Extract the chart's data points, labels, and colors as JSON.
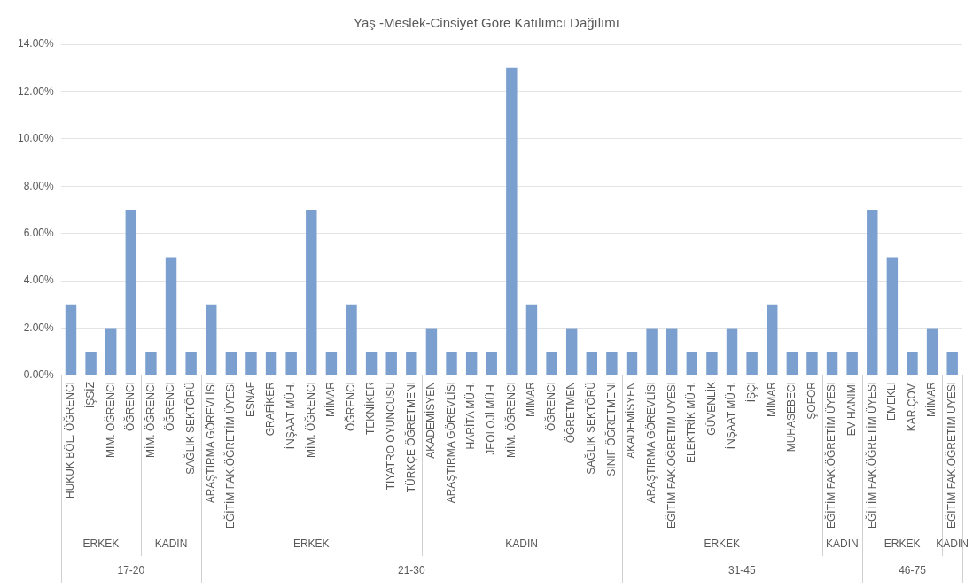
{
  "chart_data": {
    "type": "bar",
    "title": "Yaş -Meslek-Cinsiyet Göre Katılımcı Dağılımı",
    "categories": [
      "HUKUK BÖL. ÖĞRENCİ",
      "İŞSİZ",
      "MİM. ÖĞRENCİ",
      "ÖĞRENCİ",
      "MİM. ÖĞRENCİ",
      "ÖĞRENCİ",
      "SAĞLIK SEKTÖRÜ",
      "ARAŞTIRMA GÖREVLİSİ",
      "EĞİTİM FAK.ÖĞRETİM ÜYESİ",
      "ESNAF",
      "GRAFİKER",
      "İNŞAAT MÜH.",
      "MİM. ÖĞRENCİ",
      "MİMAR",
      "ÖĞRENCİ",
      "TEKNİKER",
      "TİYATRO OYUNCUSU",
      "TÜRKÇE ÖĞRETMENİ",
      "AKADEMİSYEN",
      "ARAŞTIRMA GÖREVLİSİ",
      "HARİTA MÜH.",
      "JEOLOJİ MÜH.",
      "MİM. ÖĞRENCİ",
      "MİMAR",
      "ÖĞRENCİ",
      "ÖĞRETMEN",
      "SAĞLIK SEKTÖRÜ",
      "SINIF ÖĞRETMENİ",
      "AKADEMİSYEN",
      "ARAŞTIRMA GÖREVLİSİ",
      "EĞİTİM FAK.ÖĞRETİM ÜYESİ",
      "ELEKTRİK MÜH.",
      "GÜVENLİK",
      "İNŞAAT MÜH.",
      "İŞÇİ",
      "MİMAR",
      "MUHASEBECİ",
      "ŞOFÖR",
      "EĞİTİM FAK.ÖĞRETİM ÜYESİ",
      "EV HANIMI",
      "EĞİTİM FAK.ÖĞRETİM ÜYESİ",
      "EMEKLİ",
      "KAR.ÇOV.",
      "MİMAR",
      "EĞİTİM FAK.ÖĞRETİM ÜYESİ"
    ],
    "values": [
      3,
      1,
      2,
      7,
      1,
      5,
      1,
      3,
      1,
      1,
      1,
      1,
      7,
      1,
      3,
      1,
      1,
      1,
      2,
      1,
      1,
      1,
      13,
      3,
      1,
      2,
      1,
      1,
      1,
      2,
      2,
      1,
      1,
      2,
      1,
      3,
      1,
      1,
      1,
      1,
      7,
      5,
      1,
      2,
      1
    ],
    "color": "#7ba0d0",
    "ylim": [
      0,
      14
    ],
    "yticks": [
      {
        "value": 0,
        "label": "0.00%"
      },
      {
        "value": 2,
        "label": "2.00%"
      },
      {
        "value": 4,
        "label": "4.00%"
      },
      {
        "value": 6,
        "label": "6.00%"
      },
      {
        "value": 8,
        "label": "8.00%"
      },
      {
        "value": 10,
        "label": "10.00%"
      },
      {
        "value": 12,
        "label": "12.00%"
      },
      {
        "value": 14,
        "label": "14.00%"
      }
    ],
    "grid": "y",
    "annotations": [
      "ERKEK",
      "KADIN",
      "ERKEK",
      "KADIN",
      "ERKEK",
      "KADIN",
      "ERKEK",
      "KADIN",
      "17-20",
      "21-30",
      "31-45",
      "46-75"
    ]
  }
}
